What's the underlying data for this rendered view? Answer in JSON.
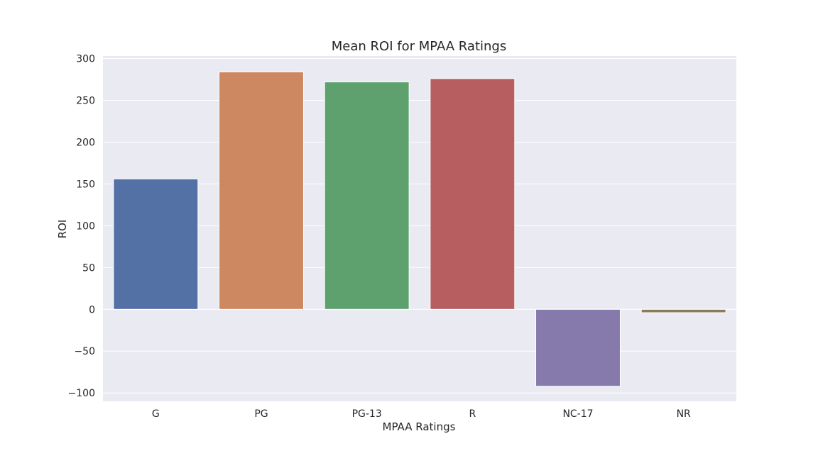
{
  "chart_data": {
    "type": "bar",
    "title": "Mean ROI for MPAA Ratings",
    "xlabel": "MPAA Ratings",
    "ylabel": "ROI",
    "categories": [
      "G",
      "PG",
      "PG-13",
      "R",
      "NC-17",
      "NR"
    ],
    "values": [
      156,
      284,
      272,
      276,
      -92,
      -4
    ],
    "ylim": [
      -110,
      303
    ],
    "yticks": [
      -100,
      -50,
      0,
      50,
      100,
      150,
      200,
      250,
      300
    ],
    "ytick_labels": [
      "−100",
      "−50",
      "0",
      "50",
      "100",
      "150",
      "200",
      "250",
      "300"
    ],
    "grid": true,
    "colors": {
      "bars": [
        "#5471a6",
        "#cd8761",
        "#5ea16e",
        "#b65e60",
        "#8679ab",
        "#8c7a5f"
      ],
      "plot_background": "#eaeaf2",
      "grid": "#ffffff"
    }
  }
}
